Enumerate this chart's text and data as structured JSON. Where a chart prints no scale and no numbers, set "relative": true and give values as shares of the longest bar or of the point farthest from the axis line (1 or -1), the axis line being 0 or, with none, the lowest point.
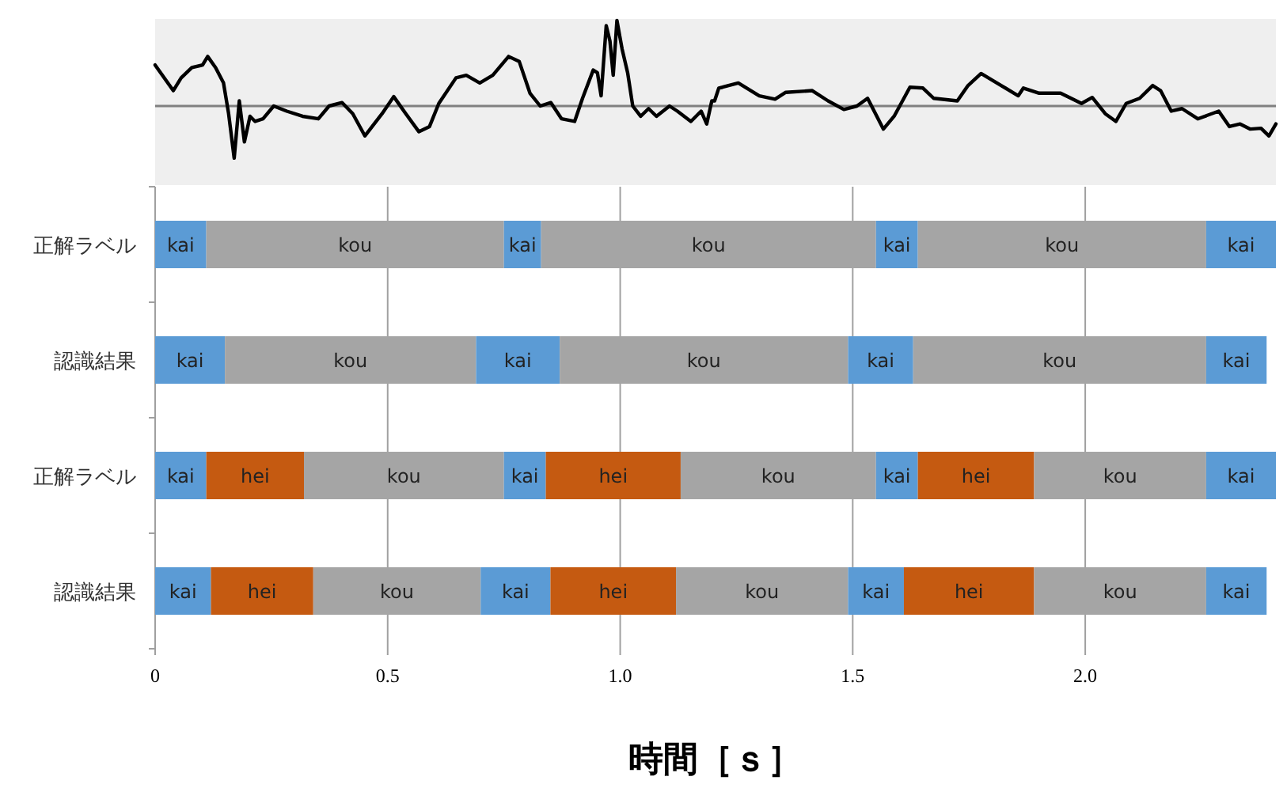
{
  "chart_data": [
    {
      "type": "line",
      "relative": true,
      "tick_labels": false,
      "xlim": [
        0,
        2.41
      ],
      "ref_lines": [
        {
          "axis": "y",
          "value": 0,
          "color": "#808080"
        }
      ],
      "series": [
        {
          "color": "#000000",
          "x": [
            0,
            0.039,
            0.056,
            0.079,
            0.102,
            0.113,
            0.13,
            0.147,
            0.158,
            0.17,
            0.181,
            0.192,
            0.204,
            0.215,
            0.232,
            0.255,
            0.283,
            0.317,
            0.351,
            0.374,
            0.402,
            0.425,
            0.451,
            0.488,
            0.513,
            0.539,
            0.567,
            0.59,
            0.61,
            0.647,
            0.669,
            0.698,
            0.726,
            0.76,
            0.783,
            0.806,
            0.828,
            0.851,
            0.874,
            0.902,
            0.919,
            0.942,
            0.951,
            0.959,
            0.97,
            0.978,
            0.985,
            0.993,
            1.004,
            1.016,
            1.027,
            1.044,
            1.061,
            1.078,
            1.106,
            1.123,
            1.152,
            1.174,
            1.186,
            1.197,
            1.203,
            1.212,
            1.22,
            1.254,
            1.299,
            1.333,
            1.356,
            1.413,
            1.447,
            1.481,
            1.509,
            1.532,
            1.549,
            1.566,
            1.589,
            1.623,
            1.651,
            1.674,
            1.725,
            1.748,
            1.776,
            1.81,
            1.856,
            1.867,
            1.901,
            1.947,
            1.992,
            2.015,
            2.043,
            2.066,
            2.088,
            2.117,
            2.145,
            2.162,
            2.185,
            2.208,
            2.242,
            2.287,
            2.31,
            2.333,
            2.355,
            2.378,
            2.395,
            2.41
          ],
          "values": [
            0.48,
            0.18,
            0.33,
            0.45,
            0.48,
            0.58,
            0.45,
            0.27,
            -0.09,
            -0.61,
            0.06,
            -0.42,
            -0.12,
            -0.18,
            -0.15,
            0,
            -0.06,
            -0.12,
            -0.15,
            0,
            0.04,
            -0.09,
            -0.35,
            -0.09,
            0.11,
            -0.09,
            -0.3,
            -0.24,
            0.03,
            0.33,
            0.36,
            0.27,
            0.36,
            0.58,
            0.52,
            0.15,
            0,
            0.04,
            -0.15,
            -0.18,
            0.09,
            0.42,
            0.39,
            0.12,
            0.94,
            0.76,
            0.36,
            1,
            0.67,
            0.39,
            0,
            -0.12,
            -0.03,
            -0.12,
            0,
            -0.06,
            -0.18,
            -0.06,
            -0.21,
            0.06,
            0.06,
            0.21,
            0.22,
            0.27,
            0.12,
            0.08,
            0.16,
            0.18,
            0.06,
            -0.04,
            0,
            0.09,
            -0.09,
            -0.27,
            -0.12,
            0.22,
            0.21,
            0.09,
            0.06,
            0.24,
            0.38,
            0.27,
            0.12,
            0.21,
            0.15,
            0.15,
            0.03,
            0.1,
            -0.09,
            -0.18,
            0.03,
            0.09,
            0.24,
            0.18,
            -0.06,
            -0.03,
            -0.15,
            -0.06,
            -0.24,
            -0.21,
            -0.27,
            -0.26,
            -0.35,
            -0.21
          ]
        }
      ]
    },
    {
      "type": "bar",
      "orientation": "horizontal",
      "stacked": true,
      "grid": "x",
      "categories": [
        "正解ラベル",
        "認識結果",
        "正解ラベル",
        "認識結果"
      ],
      "xlim": [
        0,
        2.41
      ],
      "xticks": [
        0,
        0.5,
        {
          "value": 1,
          "label": "1.0"
        },
        1.5,
        {
          "value": 2,
          "label": "2.0"
        }
      ],
      "xlabel": "時間［ｓ］",
      "series": [
        {
          "values": [
            0.11,
            0.15,
            0.11,
            0.12
          ],
          "colors": [
            "#5b9bd5",
            "#5b9bd5",
            "#5b9bd5",
            "#5b9bd5"
          ],
          "value_labels": [
            "kai",
            "kai",
            "kai",
            "kai"
          ]
        },
        {
          "values": [
            0.64,
            0.54,
            0.21,
            0.22
          ],
          "colors": [
            "#a5a5a5",
            "#a5a5a5",
            "#c55a11",
            "#c55a11"
          ],
          "value_labels": [
            "kou",
            "kou",
            "hei",
            "hei"
          ]
        },
        {
          "values": [
            0.08,
            0.18,
            0.43,
            0.36
          ],
          "colors": [
            "#5b9bd5",
            "#5b9bd5",
            "#a5a5a5",
            "#a5a5a5"
          ],
          "value_labels": [
            "kai",
            "kai",
            "kou",
            "kou"
          ]
        },
        {
          "values": [
            0.72,
            0.62,
            0.09,
            0.15
          ],
          "colors": [
            "#a5a5a5",
            "#a5a5a5",
            "#5b9bd5",
            "#5b9bd5"
          ],
          "value_labels": [
            "kou",
            "kou",
            "kai",
            "kai"
          ]
        },
        {
          "values": [
            0.09,
            0.14,
            0.29,
            0.27
          ],
          "colors": [
            "#5b9bd5",
            "#5b9bd5",
            "#c55a11",
            "#c55a11"
          ],
          "value_labels": [
            "kai",
            "kai",
            "hei",
            "hei"
          ]
        },
        {
          "values": [
            0.62,
            0.63,
            0.42,
            0.37
          ],
          "colors": [
            "#a5a5a5",
            "#a5a5a5",
            "#a5a5a5",
            "#a5a5a5"
          ],
          "value_labels": [
            "kou",
            "kou",
            "kou",
            "kou"
          ]
        },
        {
          "values": [
            0.15,
            0.13,
            0.09,
            0.12
          ],
          "colors": [
            "#5b9bd5",
            "#5b9bd5",
            "#5b9bd5",
            "#5b9bd5"
          ],
          "value_labels": [
            "kai",
            "kai",
            "kai",
            "kai"
          ]
        },
        {
          "values": [
            null,
            null,
            0.25,
            0.28
          ],
          "colors": [
            null,
            null,
            "#c55a11",
            "#c55a11"
          ],
          "value_labels": [
            null,
            null,
            "hei",
            "hei"
          ]
        },
        {
          "values": [
            null,
            null,
            0.37,
            0.37
          ],
          "colors": [
            null,
            null,
            "#a5a5a5",
            "#a5a5a5"
          ],
          "value_labels": [
            null,
            null,
            "kou",
            "kou"
          ]
        },
        {
          "values": [
            null,
            null,
            0.15,
            0.13
          ],
          "colors": [
            null,
            null,
            "#5b9bd5",
            "#5b9bd5"
          ],
          "value_labels": [
            null,
            null,
            "kai",
            "kai"
          ]
        }
      ]
    }
  ]
}
